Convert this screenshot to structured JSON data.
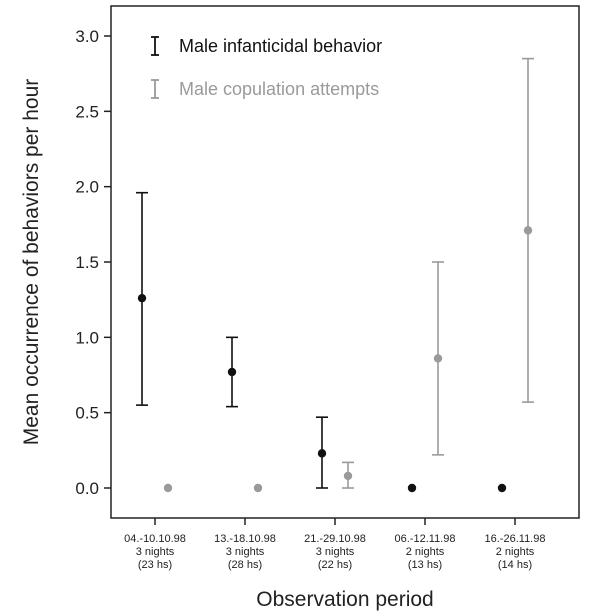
{
  "chart_data": {
    "type": "scatter",
    "title": "",
    "xlabel": "Observation period",
    "ylabel": "Mean occurrence of behaviors per hour",
    "ylim": [
      -0.2,
      3.2
    ],
    "yticks": [
      "0.0",
      "0.5",
      "1.0",
      "1.5",
      "2.0",
      "2.5",
      "3.0"
    ],
    "categories": [
      {
        "lines": [
          "04.-10.10.98",
          "3 nights",
          "(23 hs)"
        ]
      },
      {
        "lines": [
          "13.-18.10.98",
          "3 nights",
          "(28 hs)"
        ]
      },
      {
        "lines": [
          "21.-29.10.98",
          "3 nights",
          "(22 hs)"
        ]
      },
      {
        "lines": [
          "06.-12.11.98",
          "2 nights",
          "(13 hs)"
        ]
      },
      {
        "lines": [
          "16.-26.11.98",
          "2 nights",
          "(14 hs)"
        ]
      }
    ],
    "legend_position": "top-left",
    "grid": false,
    "error_bars": true,
    "series": [
      {
        "name": "Male infanticidal behavior",
        "color": "#111111",
        "values": [
          1.26,
          0.77,
          0.23,
          0.0,
          0.0
        ],
        "lower": [
          0.55,
          0.54,
          0.0,
          null,
          null
        ],
        "upper": [
          1.96,
          1.0,
          0.47,
          null,
          null
        ]
      },
      {
        "name": "Male copulation attempts",
        "color": "#9a9a9a",
        "values": [
          0.0,
          0.0,
          0.08,
          0.86,
          1.71
        ],
        "lower": [
          null,
          null,
          0.0,
          0.22,
          0.57
        ],
        "upper": [
          null,
          null,
          0.17,
          1.5,
          2.85
        ]
      }
    ]
  }
}
